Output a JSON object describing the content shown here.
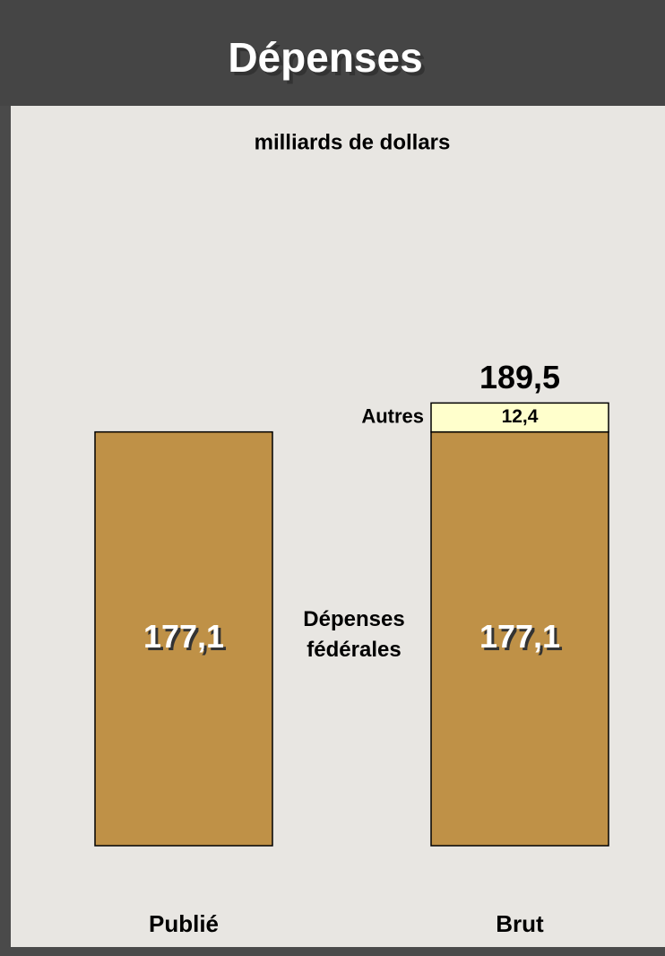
{
  "chart_data": {
    "type": "stacked_bar",
    "title": "Dépenses",
    "subtitle": "milliards de dollars",
    "categories": [
      "Publié",
      "Brut"
    ],
    "series": [
      {
        "name": "Dépenses fédérales",
        "color": "#bf9147",
        "values": [
          177.1,
          177.1
        ],
        "value_labels": [
          "177,1",
          "177,1"
        ]
      },
      {
        "name": "Autres",
        "color": "#ffffcc",
        "values": [
          null,
          12.4
        ],
        "value_labels": [
          null,
          "12,4"
        ]
      }
    ],
    "totals": [
      null,
      189.5
    ],
    "total_labels": [
      null,
      "189,5"
    ],
    "ylim": [
      0,
      200
    ]
  }
}
